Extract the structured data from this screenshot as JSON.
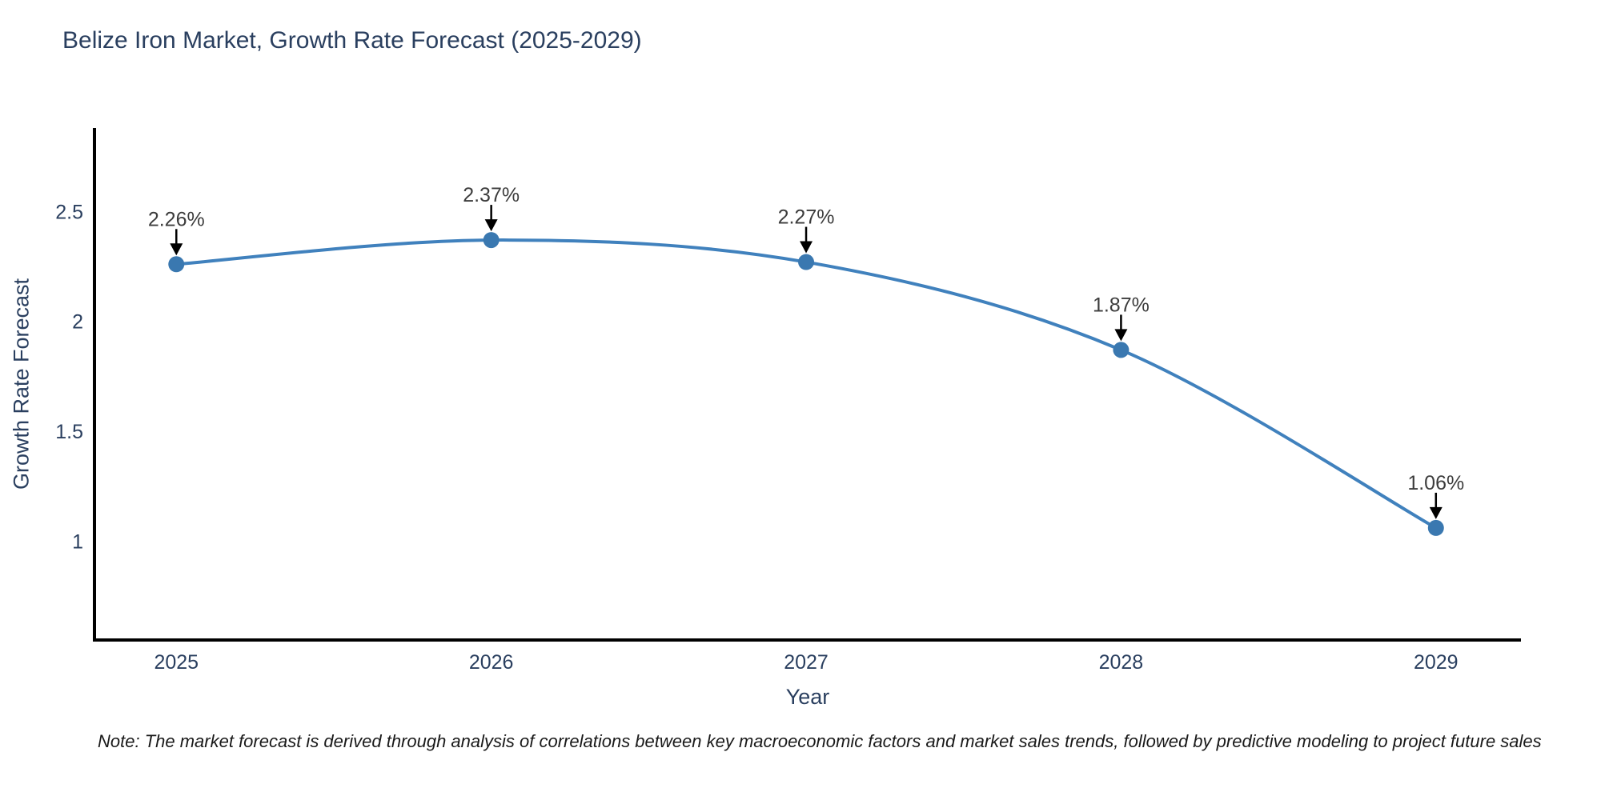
{
  "page": {
    "title": "Belize Iron Market, Growth Rate Forecast (2025-2029)",
    "note": "Note: The market forecast is derived through analysis of correlations between key macroeconomic factors and market sales trends, followed by predictive modeling to project future sales"
  },
  "chart_data": {
    "type": "line",
    "title": "Belize Iron Market, Growth Rate Forecast (2025-2029)",
    "x": [
      2025,
      2026,
      2027,
      2028,
      2029
    ],
    "series": [
      {
        "name": "Growth Rate Forecast",
        "values": [
          2.26,
          2.37,
          2.27,
          1.87,
          1.06
        ]
      }
    ],
    "point_labels": [
      "2.26%",
      "2.37%",
      "2.27%",
      "1.87%",
      "1.06%"
    ],
    "xlabel": "Year",
    "ylabel": "Growth Rate Forecast",
    "xticks": [
      2025,
      2026,
      2027,
      2028,
      2029
    ],
    "yticks": [
      1,
      1.5,
      2,
      2.5
    ],
    "xlim": [
      2024.74,
      2029.27
    ],
    "ylim": [
      0.55,
      2.88
    ],
    "grid": false,
    "legend": "none",
    "smooth": true,
    "colors": {
      "line": "#4081bd",
      "marker": "#3a78b0",
      "axis": "#000000",
      "axis_text": "#2a3f5f",
      "annotation_text": "#3d3d3d",
      "arrow": "#000000",
      "background": "#ffffff"
    }
  }
}
